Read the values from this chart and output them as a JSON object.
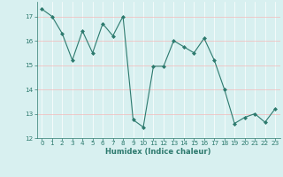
{
  "x": [
    0,
    1,
    2,
    3,
    4,
    5,
    6,
    7,
    8,
    9,
    10,
    11,
    12,
    13,
    14,
    15,
    16,
    17,
    18,
    19,
    20,
    21,
    22,
    23
  ],
  "y": [
    17.3,
    17.0,
    16.3,
    15.2,
    16.4,
    15.5,
    16.7,
    16.2,
    17.0,
    12.75,
    12.45,
    14.95,
    14.95,
    16.0,
    15.75,
    15.5,
    16.1,
    15.2,
    14.0,
    12.6,
    12.85,
    13.0,
    12.65,
    13.2
  ],
  "line_color": "#2d7a6e",
  "marker": "D",
  "marker_size": 2,
  "bg_color": "#d8f0f0",
  "grid_color": "#f5b8b8",
  "grid_color_minor": "#ffffff",
  "xlabel": "Humidex (Indice chaleur)",
  "ylim": [
    12,
    17.6
  ],
  "xlim": [
    -0.5,
    23.5
  ],
  "yticks": [
    12,
    13,
    14,
    15,
    16,
    17
  ],
  "xticks": [
    0,
    1,
    2,
    3,
    4,
    5,
    6,
    7,
    8,
    9,
    10,
    11,
    12,
    13,
    14,
    15,
    16,
    17,
    18,
    19,
    20,
    21,
    22,
    23
  ],
  "tick_color": "#2d7a6e",
  "label_color": "#2d7a6e",
  "xlabel_fontsize": 6.0,
  "tick_fontsize": 5.2
}
